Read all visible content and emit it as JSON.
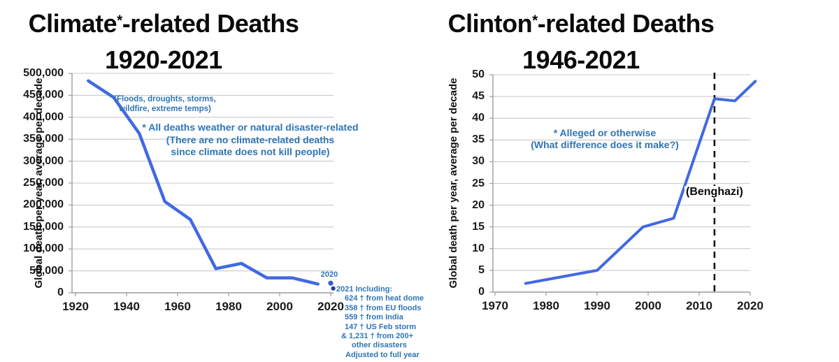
{
  "charts": [
    {
      "title": {
        "prefix": "Climate",
        "asterisk": "*",
        "suffix": "-related Deaths",
        "line2": "1920-2021"
      },
      "y_axis_title": "Global death per year, average per decade",
      "notes": {
        "subject_note": [
          "(Floods, droughts, storms,",
          "wildfire, extreme temps)"
        ],
        "asterisk_note": [
          "* All deaths weather or natural disaster-related",
          "(There are no climate-related deaths",
          "since climate does not kill people)"
        ],
        "dot_label_2020": "2020",
        "including_note": [
          "2021 Including:",
          "624 † from heat dome",
          "358 † from EU floods",
          "559 † from India",
          "147 † US Feb storm",
          "& 1,231 † from 200+",
          "other disasters",
          "Adjusted to full year"
        ]
      }
    },
    {
      "title": {
        "prefix": "Clinton",
        "asterisk": "*",
        "suffix": "-related Deaths",
        "line2": "1946-2021"
      },
      "y_axis_title": "Global death per year, average per decade",
      "notes": {
        "asterisk_note": [
          "* Alleged or otherwise",
          "(What difference does it make?)"
        ],
        "benghazi_label": "(Benghazi)"
      }
    }
  ],
  "chart_data": [
    {
      "type": "line",
      "title": "Climate*-related Deaths 1920-2021",
      "xlabel": "",
      "ylabel": "Global death per year, average per decade",
      "x": [
        1925,
        1935,
        1945,
        1955,
        1965,
        1975,
        1985,
        1995,
        2005,
        2015
      ],
      "values": [
        483000,
        445000,
        363000,
        208000,
        167000,
        55000,
        67000,
        34000,
        34000,
        20000
      ],
      "extra_points": [
        {
          "x": 2020,
          "y": 22000,
          "label": "2020"
        },
        {
          "x": 2021,
          "y": 10000,
          "label": "2021"
        }
      ],
      "xticks": [
        1920,
        1940,
        1960,
        1980,
        2000,
        2020
      ],
      "xtick_labels": [
        "1920",
        "1940",
        "1960",
        "1980",
        "2000",
        "2020"
      ],
      "yticks": [
        0,
        50000,
        100000,
        150000,
        200000,
        250000,
        300000,
        350000,
        400000,
        450000,
        500000
      ],
      "ytick_labels": [
        "0",
        "50,000",
        "100,000",
        "150,000",
        "200,000",
        "250,000",
        "300,000",
        "350,000",
        "400,000",
        "450,000",
        "500,000"
      ],
      "ylim": [
        0,
        500000
      ],
      "xlim": [
        1918.6,
        2021.2
      ],
      "grid": "horizontal",
      "legend": "none"
    },
    {
      "type": "line",
      "title": "Clinton*-related Deaths 1946-2021",
      "xlabel": "",
      "ylabel": "Global death per year, average per decade",
      "x": [
        1976,
        1990,
        1999,
        2005,
        2013,
        2017,
        2021
      ],
      "values": [
        2,
        5,
        15,
        17,
        44.5,
        44,
        48.5
      ],
      "dashed_vline_x": 2013,
      "dashed_vline_label": "(Benghazi)",
      "xticks": [
        1970,
        1980,
        1990,
        2000,
        2010,
        2020
      ],
      "xtick_labels": [
        "1970",
        "1980",
        "1990",
        "2000",
        "2010",
        "2020"
      ],
      "yticks": [
        0,
        5,
        10,
        15,
        20,
        25,
        30,
        35,
        40,
        45,
        50
      ],
      "ytick_labels": [
        "0",
        "5",
        "10",
        "15",
        "20",
        "25",
        "30",
        "35",
        "40",
        "45",
        "50"
      ],
      "ylim": [
        0,
        50
      ],
      "xlim": [
        1969.6,
        2021.3
      ],
      "grid": "horizontal",
      "legend": "none"
    }
  ],
  "colors": {
    "line": "#4169E1",
    "annotation_blue": "#2E75B6",
    "grid": "#C9C9C9",
    "axis": "#9C9C9C",
    "dashed_line": "#111111",
    "dot_2020": "#3A5BC7",
    "dot_2021": "#1F3F9F",
    "text": "#0A0A0A"
  }
}
